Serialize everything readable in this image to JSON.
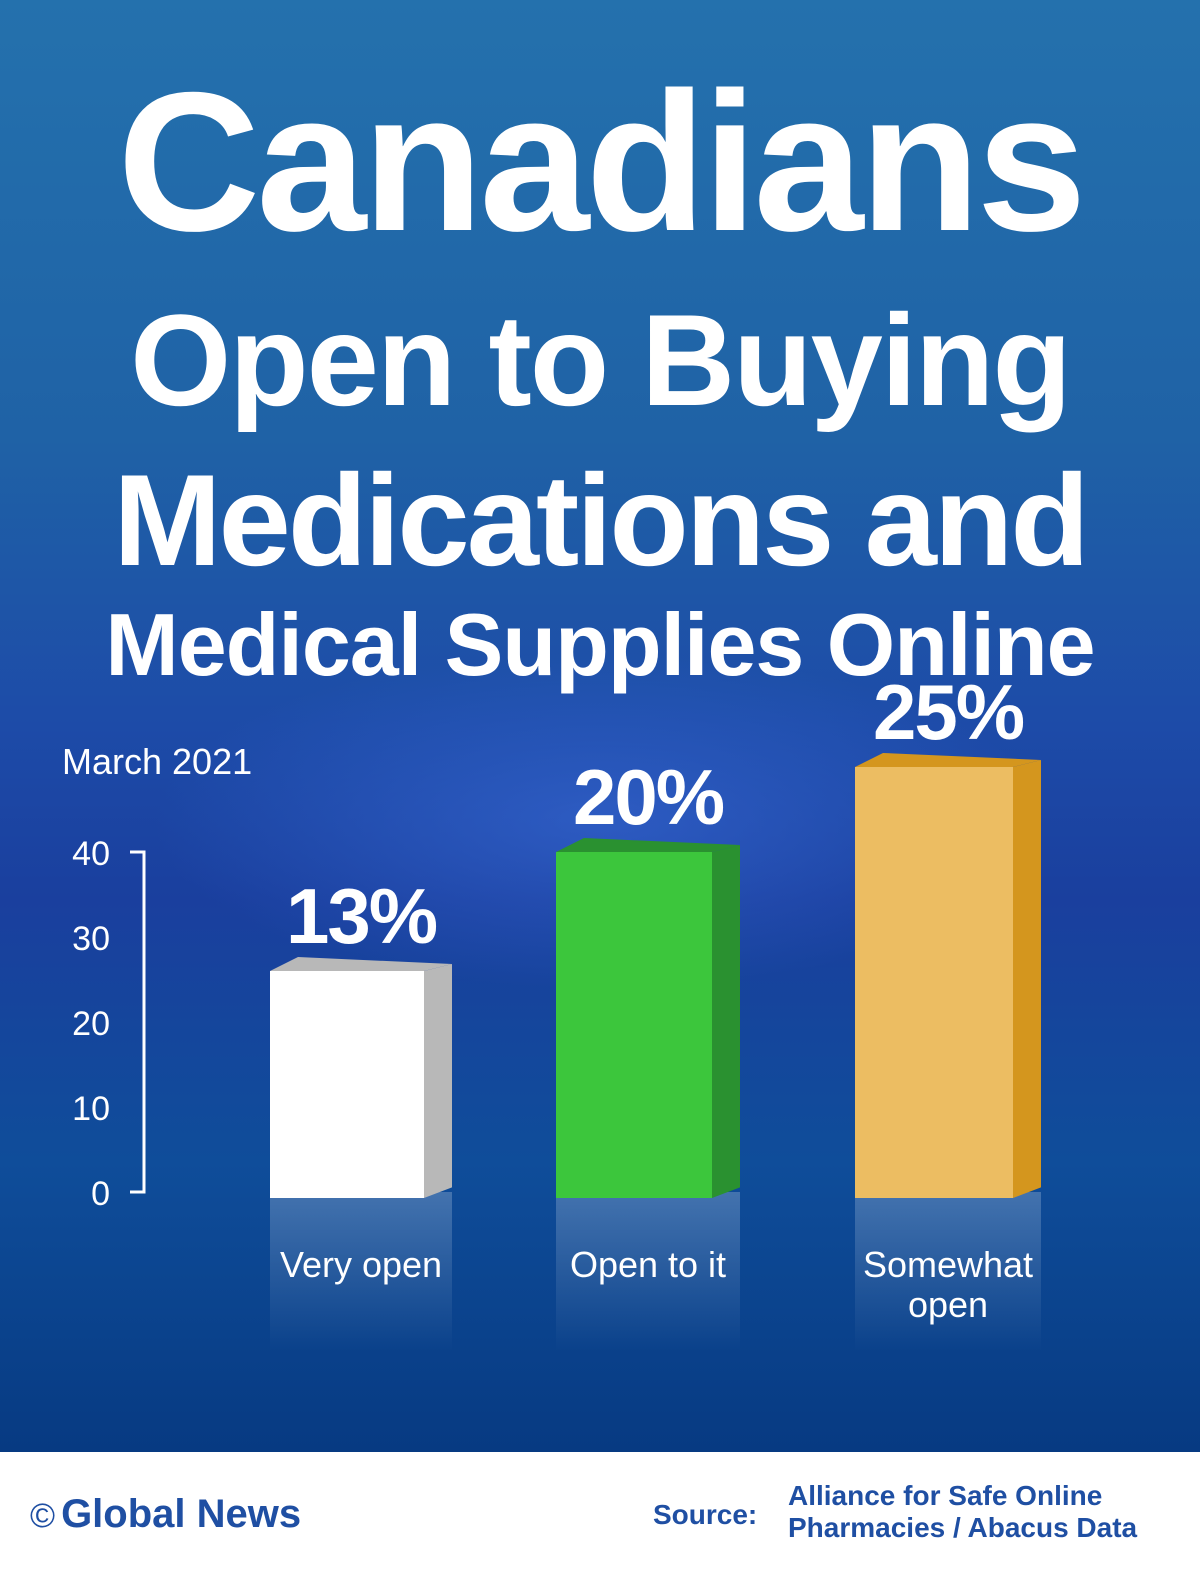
{
  "title": {
    "line1": "Canadians",
    "line2": "Open to Buying",
    "line3": "Medications and",
    "line4": "Medical Supplies Online"
  },
  "subtitle": "March 2021",
  "chart_data": {
    "type": "bar",
    "categories": [
      "Very open",
      "Open to it",
      "Somewhat open"
    ],
    "values": [
      13,
      20,
      25
    ],
    "value_labels": [
      "13%",
      "20%",
      "25%"
    ],
    "bar_colors": [
      "#ffffff",
      "#3cc63c",
      "#ecbd62"
    ],
    "side_colors": [
      "#b8b8b8",
      "#2a9130",
      "#d4961e"
    ],
    "yticks": [
      0,
      10,
      20,
      30,
      40
    ],
    "ylim": [
      0,
      40
    ],
    "grid": false,
    "legend": "none"
  },
  "footer": {
    "brand": "Global News",
    "copyright_symbol": "©",
    "source_label": "Source:",
    "source_line1": "Alliance for Safe Online",
    "source_line2": "Pharmacies / Abacus Data"
  }
}
